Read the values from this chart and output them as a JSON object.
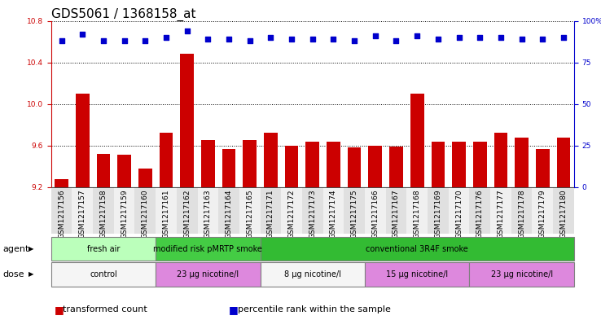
{
  "title": "GDS5061 / 1368158_at",
  "samples": [
    "GSM1217156",
    "GSM1217157",
    "GSM1217158",
    "GSM1217159",
    "GSM1217160",
    "GSM1217161",
    "GSM1217162",
    "GSM1217163",
    "GSM1217164",
    "GSM1217165",
    "GSM1217171",
    "GSM1217172",
    "GSM1217173",
    "GSM1217174",
    "GSM1217175",
    "GSM1217166",
    "GSM1217167",
    "GSM1217168",
    "GSM1217169",
    "GSM1217170",
    "GSM1217176",
    "GSM1217177",
    "GSM1217178",
    "GSM1217179",
    "GSM1217180"
  ],
  "bar_values": [
    9.28,
    10.1,
    9.52,
    9.51,
    9.38,
    9.72,
    10.48,
    9.65,
    9.57,
    9.65,
    9.72,
    9.6,
    9.64,
    9.64,
    9.58,
    9.6,
    9.59,
    10.1,
    9.64,
    9.64,
    9.64,
    9.72,
    9.68,
    9.57,
    9.68
  ],
  "percentile_values": [
    88,
    92,
    88,
    88,
    88,
    90,
    94,
    89,
    89,
    88,
    90,
    89,
    89,
    89,
    88,
    91,
    88,
    91,
    89,
    90,
    90,
    90,
    89,
    89,
    90
  ],
  "ylim_left": [
    9.2,
    10.8
  ],
  "ylim_right": [
    0,
    100
  ],
  "yticks_left": [
    9.2,
    9.6,
    10.0,
    10.4,
    10.8
  ],
  "yticks_right": [
    0,
    25,
    50,
    75,
    100
  ],
  "bar_color": "#cc0000",
  "scatter_color": "#0000cc",
  "agent_groups": [
    {
      "label": "fresh air",
      "start": 0,
      "end": 5,
      "color": "#bbffbb"
    },
    {
      "label": "modified risk pMRTP smoke",
      "start": 5,
      "end": 10,
      "color": "#44cc44"
    },
    {
      "label": "conventional 3R4F smoke",
      "start": 10,
      "end": 25,
      "color": "#33bb33"
    }
  ],
  "dose_groups": [
    {
      "label": "control",
      "start": 0,
      "end": 5,
      "color": "#f5f5f5"
    },
    {
      "label": "23 μg nicotine/l",
      "start": 5,
      "end": 10,
      "color": "#dd88dd"
    },
    {
      "label": "8 μg nicotine/l",
      "start": 10,
      "end": 15,
      "color": "#f5f5f5"
    },
    {
      "label": "15 μg nicotine/l",
      "start": 15,
      "end": 20,
      "color": "#dd88dd"
    },
    {
      "label": "23 μg nicotine/l",
      "start": 20,
      "end": 25,
      "color": "#dd88dd"
    }
  ],
  "legend_items": [
    {
      "label": "transformed count",
      "color": "#cc0000"
    },
    {
      "label": "percentile rank within the sample",
      "color": "#0000cc"
    }
  ],
  "title_fontsize": 11,
  "tick_fontsize": 6.5,
  "bar_label_fontsize": 7,
  "row_label_fontsize": 8,
  "group_label_fontsize": 7,
  "legend_fontsize": 8
}
